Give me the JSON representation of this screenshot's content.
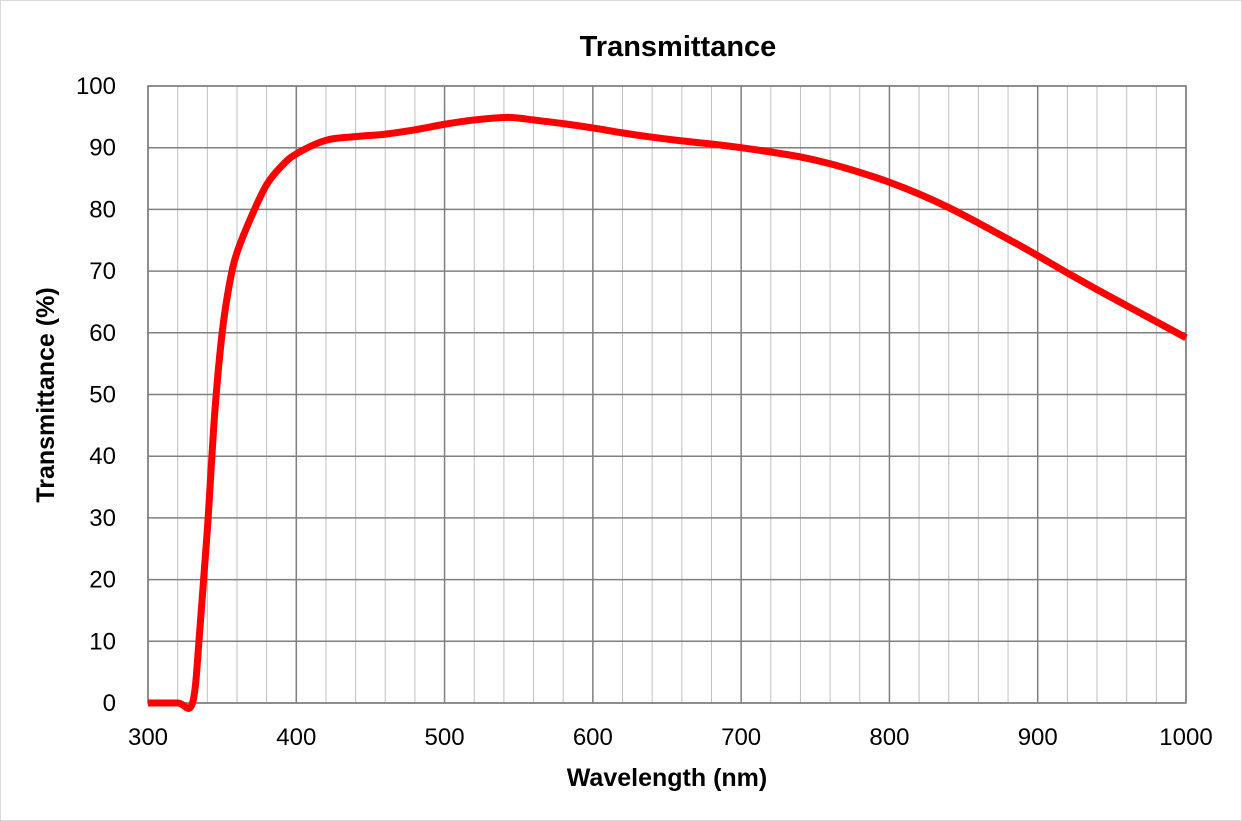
{
  "chart_data": {
    "type": "line",
    "title": "Transmittance",
    "xlabel": "Wavelength (nm)",
    "ylabel": "Transmittance (%)",
    "xlim": [
      300,
      1000
    ],
    "ylim": [
      0,
      100
    ],
    "x_ticks": [
      300,
      400,
      500,
      600,
      700,
      800,
      900,
      1000
    ],
    "y_ticks": [
      0,
      10,
      20,
      30,
      40,
      50,
      60,
      70,
      80,
      90,
      100
    ],
    "x_tick_labels": [
      "300",
      "400",
      "500",
      "600",
      "700",
      "800",
      "900",
      "1000"
    ],
    "y_tick_labels": [
      "0",
      "10",
      "20",
      "30",
      "40",
      "50",
      "60",
      "70",
      "80",
      "90",
      "100"
    ],
    "x_minor_step": 20,
    "grid": true,
    "legend": "none",
    "series": [
      {
        "color": "#ff0000",
        "x": [
          300,
          320,
          330,
          335,
          340,
          345,
          350,
          355,
          360,
          370,
          380,
          390,
          400,
          420,
          440,
          460,
          480,
          500,
          520,
          540,
          550,
          560,
          580,
          600,
          620,
          640,
          660,
          680,
          700,
          720,
          740,
          760,
          780,
          800,
          820,
          840,
          860,
          880,
          900,
          920,
          940,
          960,
          980,
          1000
        ],
        "y": [
          0,
          0,
          0,
          12,
          28,
          47,
          60,
          68,
          73,
          79,
          84,
          87,
          89,
          91.2,
          91.8,
          92.2,
          92.9,
          93.8,
          94.5,
          94.9,
          94.8,
          94.5,
          93.9,
          93.2,
          92.4,
          91.7,
          91.1,
          90.6,
          90,
          89.3,
          88.5,
          87.4,
          86,
          84.4,
          82.5,
          80.3,
          77.8,
          75.2,
          72.5,
          69.7,
          67,
          64.4,
          61.8,
          59.2
        ]
      }
    ]
  }
}
